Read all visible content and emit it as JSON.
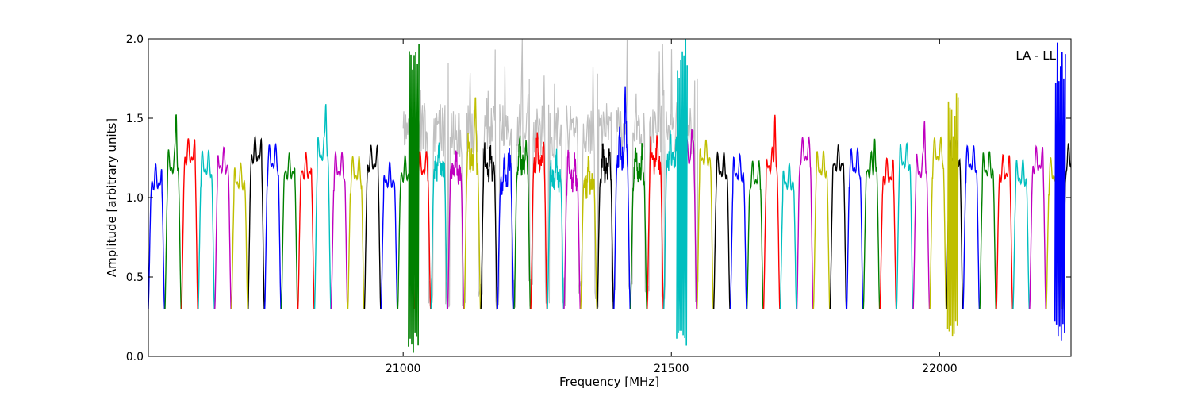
{
  "chart_data": {
    "type": "line",
    "annotation": "LA - LL",
    "xlabel": "Frequency [MHz]",
    "ylabel": "Amplitude [arbitrary units]",
    "xlim": [
      20525,
      22245
    ],
    "ylim": [
      0,
      2.0
    ],
    "xticks": [
      21000,
      21500,
      22000
    ],
    "xtick_labels": [
      "21000",
      "21500",
      "22000"
    ],
    "yticks": [
      0.0,
      0.5,
      1.0,
      1.5,
      2.0
    ],
    "ytick_labels": [
      "0.0",
      "0.5",
      "1.0",
      "1.5",
      "2.0"
    ],
    "grid": false,
    "series_colors": [
      "#0000ff",
      "#008000",
      "#ff0000",
      "#00bfbf",
      "#bf00bf",
      "#bfbf00",
      "#000000"
    ],
    "background_trace_color": "#c0c0c0",
    "band_count": 56,
    "band_start_mhz": 20525,
    "band_spacing_mhz": 31,
    "band_width_mhz": 30,
    "typical_band_level": 1.2,
    "band_edge_minimum": 0.3,
    "background_trace_range_mhz": [
      21000,
      21550
    ],
    "background_trace_peak": 2.0,
    "interference_features": [
      {
        "x": 21020,
        "min": 0.02,
        "max": 2.0,
        "color": "#008000"
      },
      {
        "x": 21520,
        "min": 0.02,
        "max": 2.0,
        "color": "#00bfbf"
      },
      {
        "x": 22025,
        "min": 0.08,
        "max": 1.68,
        "color": "#bfbf00"
      },
      {
        "x": 22225,
        "min": 0.07,
        "max": 2.0,
        "color": "#0000ff"
      }
    ]
  }
}
